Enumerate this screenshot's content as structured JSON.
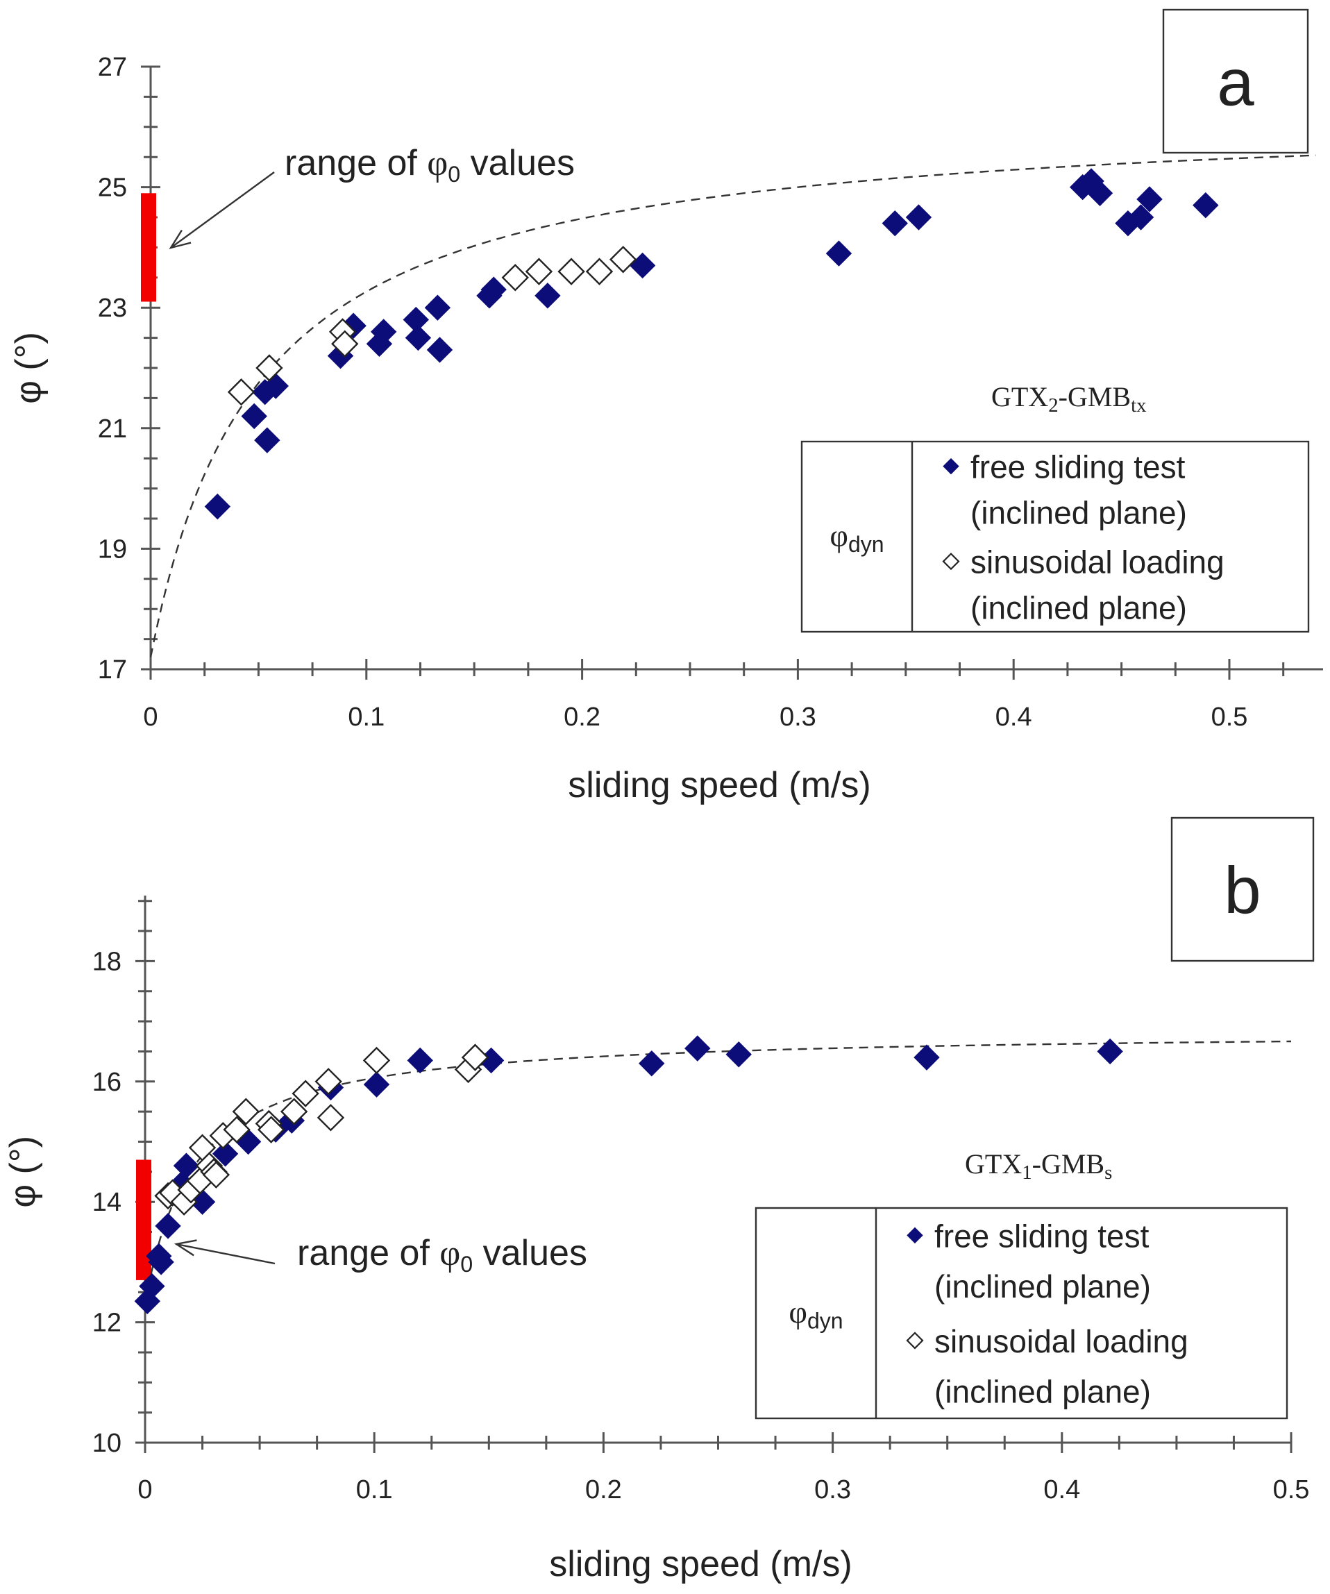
{
  "colors": {
    "free_sliding": "#0d0d7a",
    "range_bar": "#f20000",
    "axis": "#555555",
    "text": "#222222"
  },
  "chart_data": [
    {
      "type": "scatter",
      "panel": "a",
      "material": {
        "base1": "GTX",
        "sub1": "2",
        "mid": "-GMB",
        "sub2": "tx"
      },
      "xlabel": "sliding speed (m/s)",
      "ylabel": "φ (°)",
      "xlim": [
        0,
        0.54
      ],
      "ylim": [
        17,
        27
      ],
      "xticks": [
        0,
        0.1,
        0.2,
        0.3,
        0.4,
        0.5
      ],
      "xtick_labels": [
        "0",
        "0.1",
        "0.2",
        "0.3",
        "0.4",
        "0.5"
      ],
      "yticks": [
        17,
        19,
        21,
        23,
        25,
        27
      ],
      "ytick_labels": [
        "17",
        "19",
        "21",
        "23",
        "25",
        "27"
      ],
      "range_phi0": [
        23.1,
        24.9
      ],
      "annotation": {
        "pre": "range of ",
        "sym": "φ",
        "sub": "0",
        "post": " values"
      },
      "legend": {
        "symbol_base": "φ",
        "symbol_sub": "dyn",
        "entries": [
          {
            "marker": "filled-diamond",
            "line1": "free sliding test",
            "line2": "(inclined plane)"
          },
          {
            "marker": "open-diamond",
            "line1": "sinusoidal loading",
            "line2": "(inclined plane)"
          }
        ]
      },
      "fit_curve": {
        "phi0": 17.2,
        "phi_inf": 26.3,
        "v_half": 0.05
      },
      "series": [
        {
          "name": "free sliding test (inclined plane)",
          "marker": "filled-diamond",
          "points": [
            [
              0.031,
              19.7
            ],
            [
              0.048,
              21.2
            ],
            [
              0.053,
              21.6
            ],
            [
              0.054,
              20.8
            ],
            [
              0.058,
              21.7
            ],
            [
              0.088,
              22.2
            ],
            [
              0.094,
              22.7
            ],
            [
              0.106,
              22.4
            ],
            [
              0.108,
              22.6
            ],
            [
              0.123,
              22.8
            ],
            [
              0.124,
              22.5
            ],
            [
              0.133,
              23.0
            ],
            [
              0.134,
              22.3
            ],
            [
              0.157,
              23.2
            ],
            [
              0.159,
              23.3
            ],
            [
              0.184,
              23.2
            ],
            [
              0.228,
              23.7
            ],
            [
              0.319,
              23.9
            ],
            [
              0.345,
              24.4
            ],
            [
              0.356,
              24.5
            ],
            [
              0.432,
              25.0
            ],
            [
              0.436,
              25.1
            ],
            [
              0.44,
              24.9
            ],
            [
              0.453,
              24.4
            ],
            [
              0.459,
              24.5
            ],
            [
              0.463,
              24.8
            ],
            [
              0.489,
              24.7
            ]
          ]
        },
        {
          "name": "sinusoidal loading (inclined plane)",
          "marker": "open-diamond",
          "points": [
            [
              0.042,
              21.6
            ],
            [
              0.055,
              22.0
            ],
            [
              0.089,
              22.6
            ],
            [
              0.09,
              22.4
            ],
            [
              0.169,
              23.5
            ],
            [
              0.18,
              23.6
            ],
            [
              0.195,
              23.6
            ],
            [
              0.208,
              23.6
            ],
            [
              0.219,
              23.8
            ]
          ]
        }
      ]
    },
    {
      "type": "scatter",
      "panel": "b",
      "material": {
        "base1": "GTX",
        "sub1": "1",
        "mid": "-GMB",
        "sub2": "s"
      },
      "xlabel": "sliding speed (m/s)",
      "ylabel": "φ (°)",
      "xlim": [
        0,
        0.5
      ],
      "ylim": [
        10,
        19
      ],
      "xticks": [
        0,
        0.1,
        0.2,
        0.3,
        0.4,
        0.5
      ],
      "xtick_labels": [
        "0",
        "0.1",
        "0.2",
        "0.3",
        "0.4",
        "0.5"
      ],
      "yticks": [
        10,
        12,
        14,
        16,
        18
      ],
      "ytick_labels": [
        "10",
        "12",
        "14",
        "16",
        "18"
      ],
      "range_phi0": [
        12.7,
        14.7
      ],
      "annotation": {
        "pre": "range of ",
        "sym": "φ",
        "sub": "0",
        "post": " values"
      },
      "legend": {
        "symbol_base": "φ",
        "symbol_sub": "dyn",
        "entries": [
          {
            "marker": "filled-diamond",
            "line1": "free sliding test",
            "line2": "(inclined plane)"
          },
          {
            "marker": "open-diamond",
            "line1": "sinusoidal loading",
            "line2": "(inclined plane)"
          }
        ]
      },
      "fit_curve": {
        "phi0": 12.3,
        "phi_inf": 16.85,
        "v_half": 0.021
      },
      "series": [
        {
          "name": "free sliding test (inclined plane)",
          "marker": "filled-diamond",
          "points": [
            [
              0.001,
              12.35
            ],
            [
              0.003,
              12.6
            ],
            [
              0.006,
              13.1
            ],
            [
              0.007,
              13.0
            ],
            [
              0.01,
              13.6
            ],
            [
              0.016,
              14.3
            ],
            [
              0.018,
              14.6
            ],
            [
              0.025,
              14.0
            ],
            [
              0.035,
              14.8
            ],
            [
              0.045,
              15.0
            ],
            [
              0.057,
              15.2
            ],
            [
              0.064,
              15.35
            ],
            [
              0.081,
              15.9
            ],
            [
              0.101,
              15.95
            ],
            [
              0.12,
              16.35
            ],
            [
              0.151,
              16.35
            ],
            [
              0.221,
              16.3
            ],
            [
              0.241,
              16.55
            ],
            [
              0.259,
              16.45
            ],
            [
              0.341,
              16.4
            ],
            [
              0.421,
              16.5
            ]
          ]
        },
        {
          "name": "sinusoidal loading (inclined plane)",
          "marker": "open-diamond",
          "points": [
            [
              0.01,
              14.1
            ],
            [
              0.012,
              14.15
            ],
            [
              0.017,
              14.0
            ],
            [
              0.02,
              14.2
            ],
            [
              0.024,
              14.35
            ],
            [
              0.025,
              14.9
            ],
            [
              0.028,
              14.6
            ],
            [
              0.03,
              14.5
            ],
            [
              0.031,
              14.45
            ],
            [
              0.034,
              15.1
            ],
            [
              0.04,
              15.2
            ],
            [
              0.044,
              15.5
            ],
            [
              0.054,
              15.3
            ],
            [
              0.055,
              15.2
            ],
            [
              0.065,
              15.5
            ],
            [
              0.07,
              15.8
            ],
            [
              0.08,
              16.0
            ],
            [
              0.081,
              15.4
            ],
            [
              0.101,
              16.35
            ],
            [
              0.141,
              16.2
            ],
            [
              0.144,
              16.4
            ]
          ]
        }
      ]
    }
  ]
}
